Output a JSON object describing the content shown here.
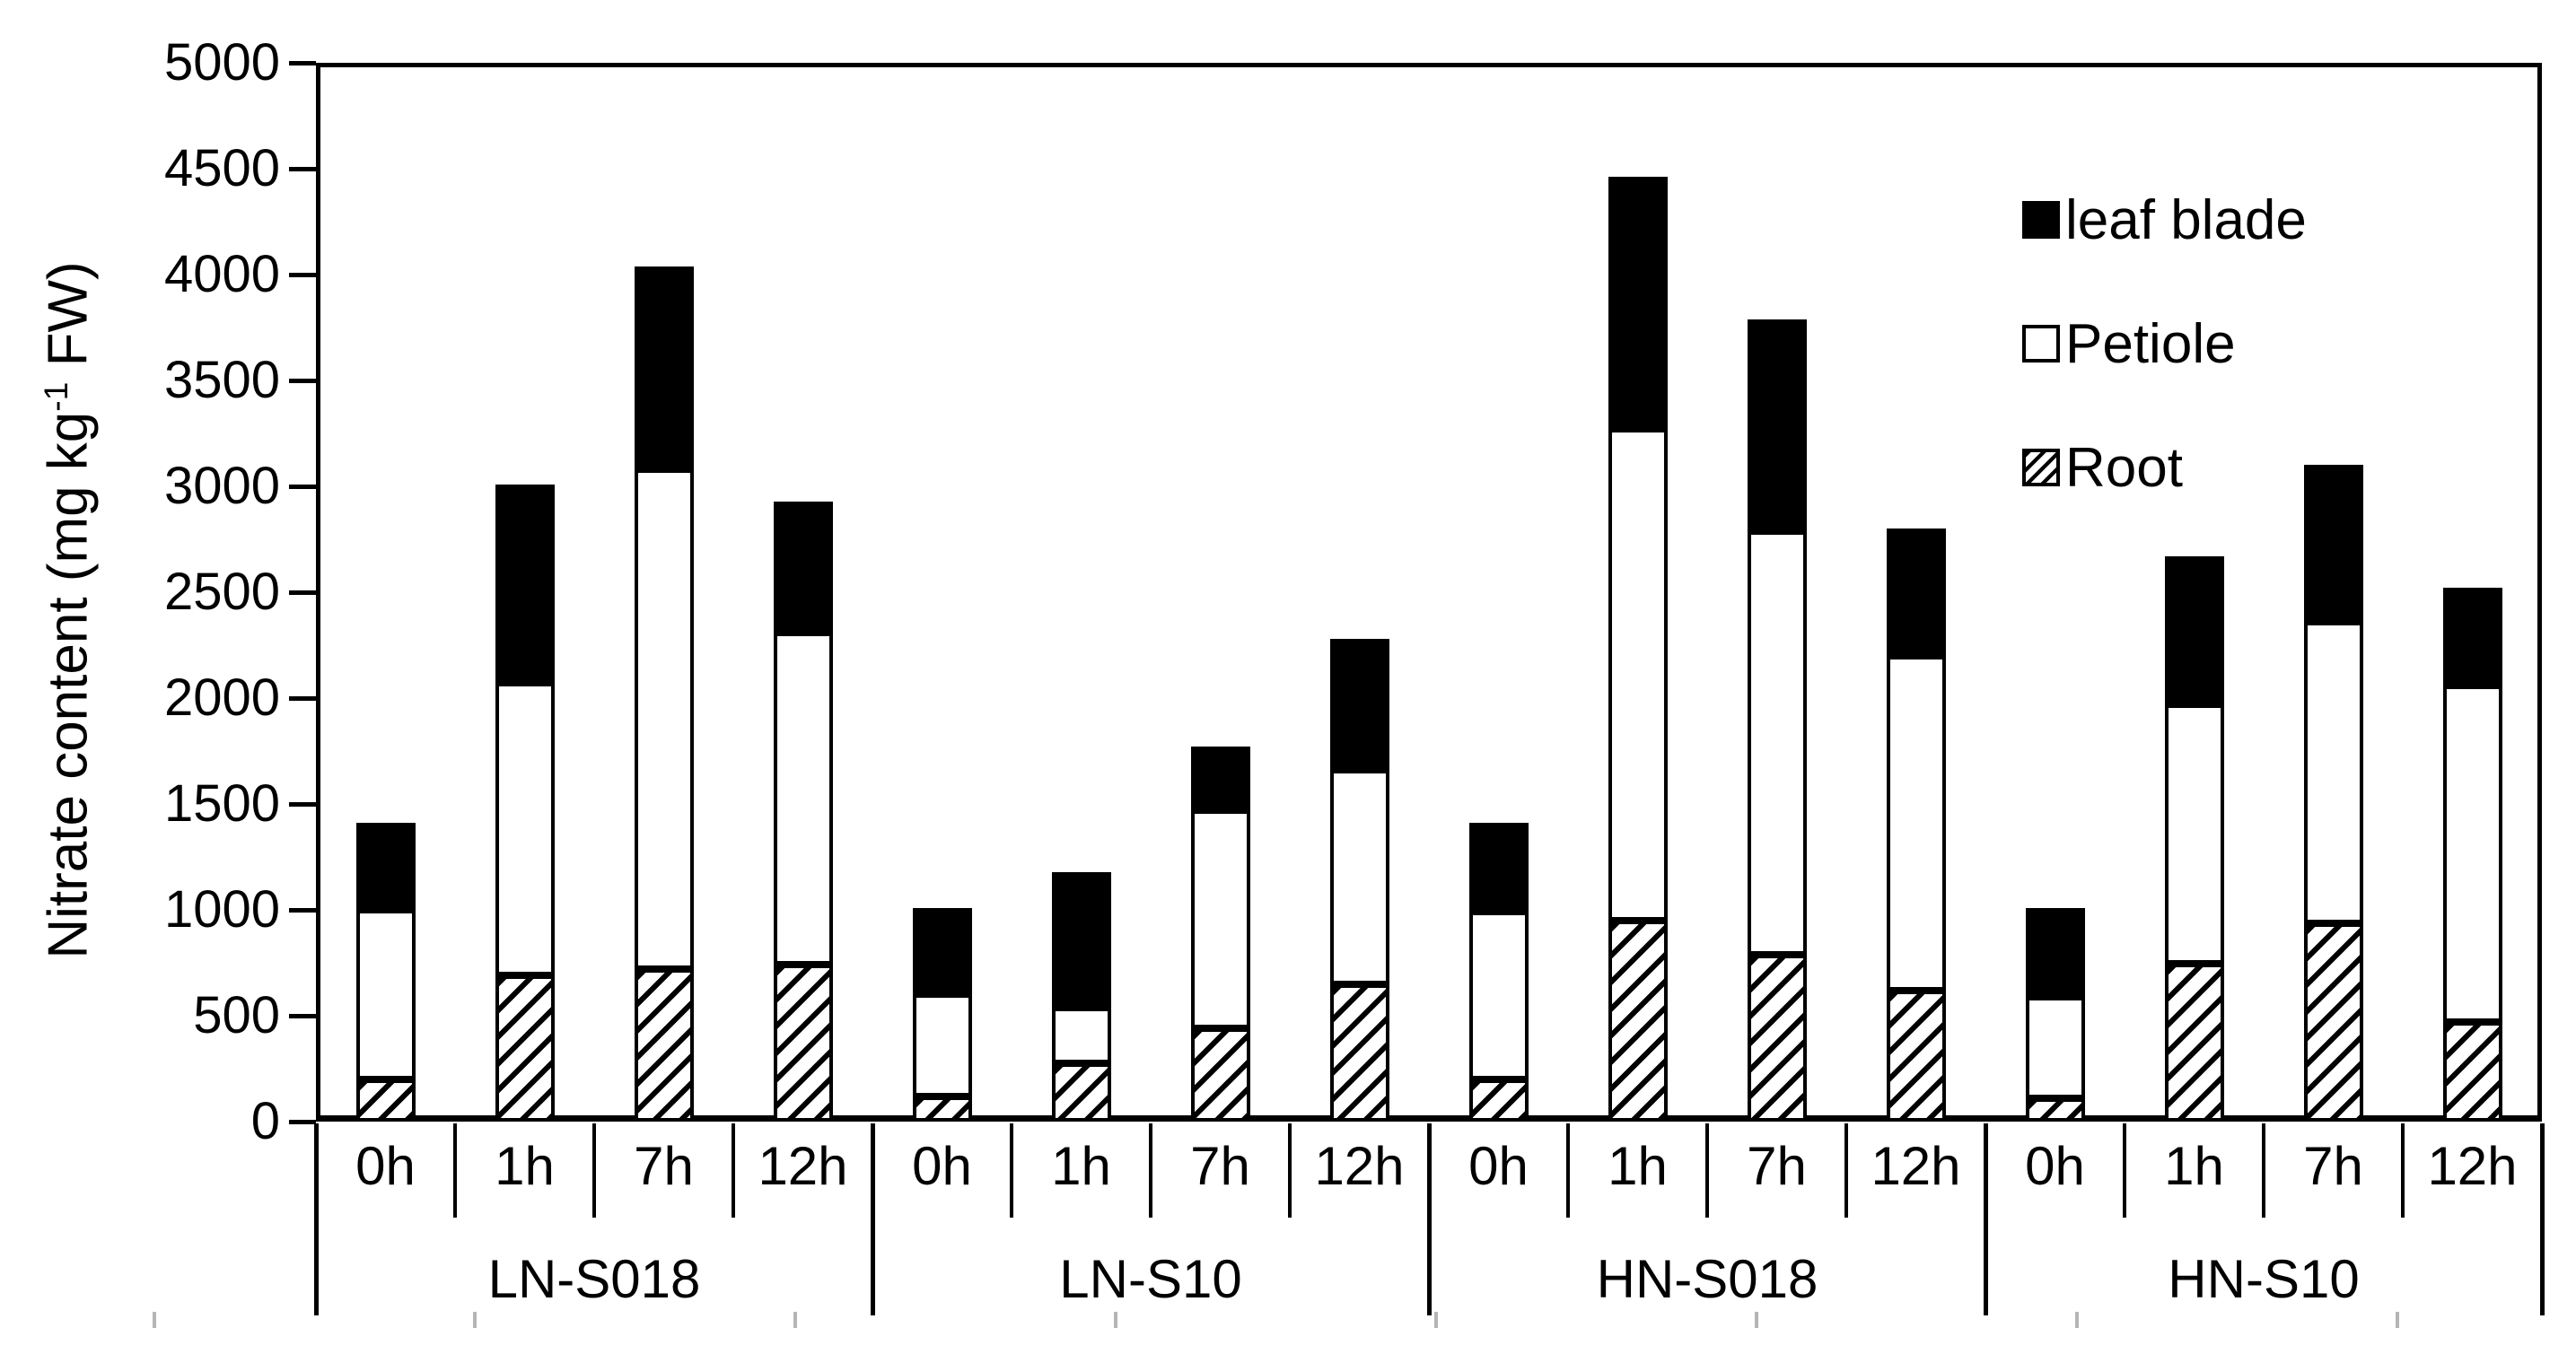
{
  "colors": {
    "black": "#000000",
    "white": "#ffffff",
    "artifact_gray": "#b5b5b5"
  },
  "chart_data": {
    "type": "bar",
    "stacked": true,
    "title": "",
    "xlabel": "",
    "ylabel": {
      "prefix": "Nitrate content (mg kg",
      "sup": "-1",
      "suffix": " FW)"
    },
    "ylim": [
      0,
      5000
    ],
    "ytick_step": 500,
    "ytick_labels": [
      "0",
      "500",
      "1000",
      "1500",
      "2000",
      "2500",
      "3000",
      "3500",
      "4000",
      "4500",
      "5000"
    ],
    "grid": false,
    "legend_position": "top-right-inside",
    "group_labels": [
      "LN-S018",
      "LN-S10",
      "HN-S018",
      "HN-S10"
    ],
    "time_labels": [
      "0h",
      "1h",
      "7h",
      "12h"
    ],
    "categories": [
      "LN-S018 0h",
      "LN-S018 1h",
      "LN-S018 7h",
      "LN-S018 12h",
      "LN-S10 0h",
      "LN-S10 1h",
      "LN-S10 7h",
      "LN-S10 12h",
      "HN-S018 0h",
      "HN-S018 1h",
      "HN-S018 7h",
      "HN-S018 12h",
      "HN-S10 0h",
      "HN-S10 1h",
      "HN-S10 7h",
      "HN-S10 12h"
    ],
    "legend": [
      {
        "label": "leaf blade",
        "swatch": "solid-black"
      },
      {
        "label": "Petiole",
        "swatch": "open-white"
      },
      {
        "label": "Root",
        "swatch": "diagonal-hatch"
      }
    ],
    "series": [
      {
        "name": "Root",
        "pattern": "diagonal-hatch",
        "values": [
          200,
          690,
          720,
          740,
          120,
          275,
          440,
          650,
          200,
          950,
          790,
          620,
          110,
          745,
          935,
          470
        ]
      },
      {
        "name": "Petiole",
        "pattern": "open-white",
        "values": [
          800,
          1380,
          2360,
          1570,
          480,
          265,
          1030,
          1010,
          790,
          2320,
          2000,
          1580,
          480,
          1225,
          1425,
          1590
        ]
      },
      {
        "name": "leaf blade",
        "pattern": "solid-black",
        "values": [
          410,
          940,
          960,
          620,
          410,
          640,
          300,
          620,
          420,
          1190,
          1000,
          600,
          420,
          700,
          740,
          460
        ]
      }
    ],
    "stack_totals": [
      1410,
      3010,
      4040,
      2930,
      1010,
      1180,
      1770,
      2280,
      1410,
      4460,
      3790,
      2800,
      1010,
      2670,
      3100,
      2520
    ]
  }
}
